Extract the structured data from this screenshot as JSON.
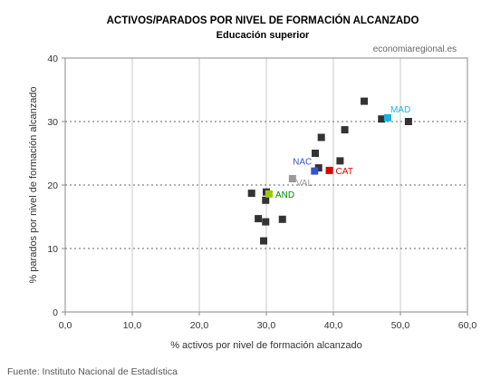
{
  "chart_data": {
    "type": "scatter",
    "title": "ACTIVOS/PARADOS POR NIVEL DE FORMACIÓN ALCANZADO",
    "subtitle": "Educación superior",
    "watermark": "economiaregional.es",
    "xlabel": "% activos por nivel de formación alcanzado",
    "ylabel": "% parados por nivel de formación alcanzado",
    "xlim": [
      0,
      60
    ],
    "ylim": [
      0,
      40
    ],
    "x_ticks": [
      0,
      10,
      20,
      30,
      40,
      50,
      60
    ],
    "y_ticks": [
      0,
      10,
      20,
      30,
      40
    ],
    "x_tick_labels": [
      "0,0",
      "10,0",
      "20,0",
      "30,0",
      "40,0",
      "50,0",
      "60,0"
    ],
    "y_tick_labels": [
      "0",
      "10",
      "20",
      "30",
      "40"
    ],
    "grid": "dashed horizontal at 10, 20, 30; solid vertical at 10, 20, 30, 40, 50",
    "default_color": "#333333",
    "points": [
      {
        "x": 27.8,
        "y": 18.7
      },
      {
        "x": 28.8,
        "y": 14.7
      },
      {
        "x": 29.6,
        "y": 11.2
      },
      {
        "x": 29.9,
        "y": 14.2
      },
      {
        "x": 29.9,
        "y": 17.6
      },
      {
        "x": 30.0,
        "y": 18.9
      },
      {
        "x": 32.4,
        "y": 14.6
      },
      {
        "x": 37.3,
        "y": 25.0
      },
      {
        "x": 37.8,
        "y": 22.7
      },
      {
        "x": 38.2,
        "y": 27.5
      },
      {
        "x": 41.0,
        "y": 23.8
      },
      {
        "x": 41.7,
        "y": 28.7
      },
      {
        "x": 44.6,
        "y": 33.2
      },
      {
        "x": 47.2,
        "y": 30.4
      },
      {
        "x": 51.2,
        "y": 30.0
      }
    ],
    "labeled_points": [
      {
        "name": "MAD",
        "x": 48.1,
        "y": 30.6,
        "color": "#1ab3e6",
        "label_pos": "upper-right"
      },
      {
        "name": "NAC",
        "x": 37.2,
        "y": 22.2,
        "color": "#3355cc",
        "label_pos": "upper-left"
      },
      {
        "name": "CAT",
        "x": 39.4,
        "y": 22.3,
        "color": "#dd0000",
        "label_pos": "right"
      },
      {
        "name": "VAL",
        "x": 33.9,
        "y": 21.0,
        "color": "#999999",
        "label_pos": "lower-right"
      },
      {
        "name": "AND",
        "x": 30.4,
        "y": 18.6,
        "color": "#99cc00",
        "label_color": "#008800",
        "label_pos": "right"
      }
    ],
    "source": "Fuente: Instituto Nacional de Estadística"
  }
}
